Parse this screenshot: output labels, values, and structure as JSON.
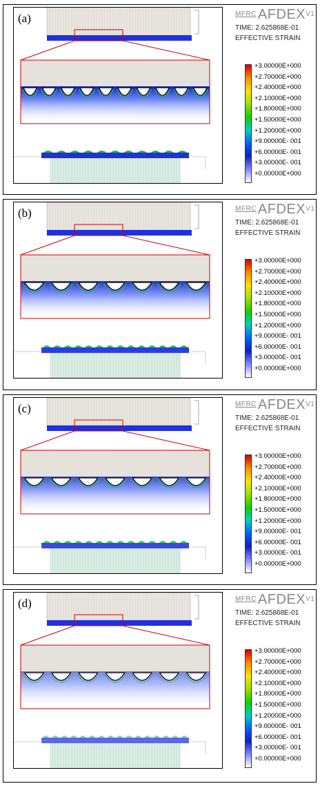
{
  "header": {
    "logo_prefix": "MFRC",
    "logo_name": "AFDEX",
    "logo_version": "V1",
    "time_label": "TIME: 2.625868E-01",
    "result_label": "EFFECTIVE STRAIN"
  },
  "legend_values": [
    "+3.00000E+000",
    "+2.70000E+000",
    "+2.40000E+000",
    "+2.10000E+000",
    "+1.80000E+000",
    "+1.50000E+000",
    "+1.20000E+000",
    "+9.00000E- 001",
    "+6.00000E- 001",
    "+3.00000E- 001",
    "+0.00000E+000"
  ],
  "colorscale": [
    "#d40000",
    "#ff8c00",
    "#ffe000",
    "#9be000",
    "#12d000",
    "#00d0c0",
    "#0060ff",
    "#1020c0",
    "#8088ff",
    "#ffffff"
  ],
  "panels": [
    {
      "label": "(a)"
    },
    {
      "label": "(b)"
    },
    {
      "label": "(c)"
    },
    {
      "label": "(d)"
    }
  ]
}
